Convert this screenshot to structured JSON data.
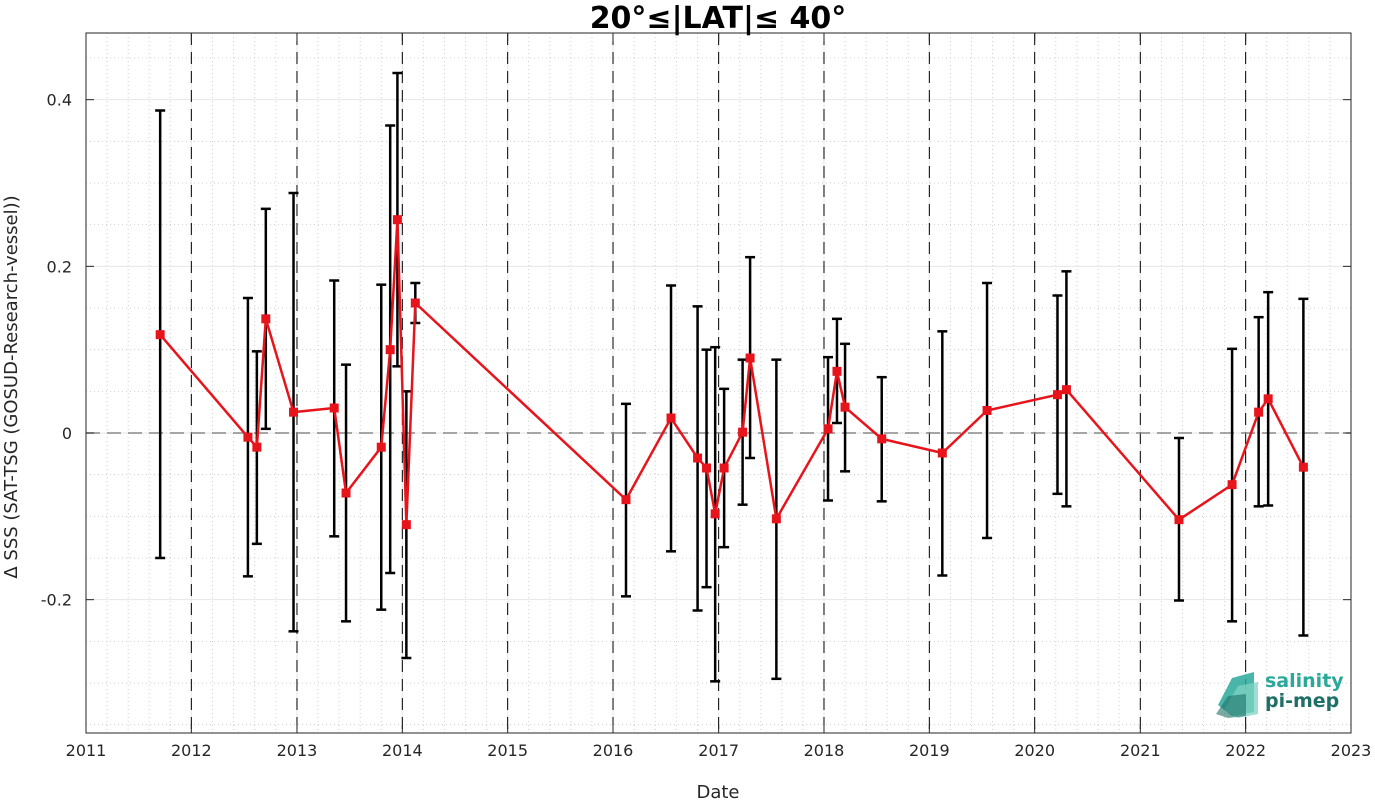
{
  "chart_data": {
    "type": "line",
    "title": "20°≤|LAT|≤ 40°",
    "xlabel": "Date",
    "ylabel": "Δ SSS (SAT-TSG (GOSUD-Research-vessel))",
    "xlim": [
      "2011-01-01",
      "2023-01-01"
    ],
    "ylim": [
      -0.36,
      0.48
    ],
    "xticks": [
      "2011",
      "2012",
      "2013",
      "2014",
      "2015",
      "2016",
      "2017",
      "2018",
      "2019",
      "2020",
      "2021",
      "2022",
      "2023"
    ],
    "yticks": [
      -0.2,
      0,
      0.2,
      0.4
    ],
    "ytick_labels": [
      "-0.2",
      "0",
      "0.2",
      "0.4"
    ],
    "grid": true,
    "minor_grid": "dotted",
    "year_boundaries": "dashed vertical lines at each year start",
    "reference_line": {
      "y": 0,
      "style": "dashed",
      "color": "#888888"
    },
    "series": [
      {
        "color": "#e8141c",
        "marker": "square",
        "errorbar_color": "#000000",
        "points": [
          {
            "x": "2011-09-15",
            "y": 0.118,
            "lo": -0.15,
            "hi": 0.387
          },
          {
            "x": "2012-07-15",
            "y": -0.005,
            "lo": -0.172,
            "hi": 0.162
          },
          {
            "x": "2012-08-15",
            "y": -0.017,
            "lo": -0.133,
            "hi": 0.098
          },
          {
            "x": "2012-09-15",
            "y": 0.137,
            "lo": 0.005,
            "hi": 0.269
          },
          {
            "x": "2012-12-20",
            "y": 0.025,
            "lo": -0.238,
            "hi": 0.288
          },
          {
            "x": "2013-05-10",
            "y": 0.03,
            "lo": -0.124,
            "hi": 0.183
          },
          {
            "x": "2013-06-20",
            "y": -0.072,
            "lo": -0.226,
            "hi": 0.082
          },
          {
            "x": "2013-10-20",
            "y": -0.017,
            "lo": -0.212,
            "hi": 0.178
          },
          {
            "x": "2013-11-20",
            "y": 0.1,
            "lo": -0.168,
            "hi": 0.369
          },
          {
            "x": "2013-12-15",
            "y": 0.256,
            "lo": 0.08,
            "hi": 0.432
          },
          {
            "x": "2014-01-15",
            "y": -0.11,
            "lo": -0.27,
            "hi": 0.05
          },
          {
            "x": "2014-02-15",
            "y": 0.156,
            "lo": 0.132,
            "hi": 0.18
          },
          {
            "x": "2016-02-15",
            "y": -0.08,
            "lo": -0.196,
            "hi": 0.035
          },
          {
            "x": "2016-07-20",
            "y": 0.018,
            "lo": -0.142,
            "hi": 0.177
          },
          {
            "x": "2016-10-20",
            "y": -0.03,
            "lo": -0.213,
            "hi": 0.152
          },
          {
            "x": "2016-11-20",
            "y": -0.042,
            "lo": -0.185,
            "hi": 0.1
          },
          {
            "x": "2016-12-20",
            "y": -0.097,
            "lo": -0.298,
            "hi": 0.103
          },
          {
            "x": "2017-01-20",
            "y": -0.042,
            "lo": -0.137,
            "hi": 0.053
          },
          {
            "x": "2017-03-25",
            "y": 0.001,
            "lo": -0.086,
            "hi": 0.088
          },
          {
            "x": "2017-04-20",
            "y": 0.09,
            "lo": -0.03,
            "hi": 0.211
          },
          {
            "x": "2017-07-20",
            "y": -0.103,
            "lo": -0.295,
            "hi": 0.088
          },
          {
            "x": "2018-01-15",
            "y": 0.005,
            "lo": -0.081,
            "hi": 0.091
          },
          {
            "x": "2018-02-15",
            "y": 0.074,
            "lo": 0.012,
            "hi": 0.137
          },
          {
            "x": "2018-03-15",
            "y": 0.031,
            "lo": -0.046,
            "hi": 0.107
          },
          {
            "x": "2018-07-20",
            "y": -0.007,
            "lo": -0.082,
            "hi": 0.067
          },
          {
            "x": "2019-02-15",
            "y": -0.024,
            "lo": -0.171,
            "hi": 0.122
          },
          {
            "x": "2019-07-20",
            "y": 0.027,
            "lo": -0.126,
            "hi": 0.18
          },
          {
            "x": "2020-03-20",
            "y": 0.046,
            "lo": -0.073,
            "hi": 0.165
          },
          {
            "x": "2020-04-20",
            "y": 0.052,
            "lo": -0.088,
            "hi": 0.194
          },
          {
            "x": "2021-05-15",
            "y": -0.104,
            "lo": -0.201,
            "hi": -0.006
          },
          {
            "x": "2021-11-15",
            "y": -0.062,
            "lo": -0.226,
            "hi": 0.101
          },
          {
            "x": "2022-02-15",
            "y": 0.025,
            "lo": -0.088,
            "hi": 0.139
          },
          {
            "x": "2022-03-20",
            "y": 0.041,
            "lo": -0.087,
            "hi": 0.169
          },
          {
            "x": "2022-07-20",
            "y": -0.041,
            "lo": -0.243,
            "hi": 0.161
          }
        ]
      }
    ]
  },
  "logo": {
    "line1": "salinity",
    "line2": "pi-mep",
    "color1": "#2aa99a",
    "color2": "#1e6f66"
  }
}
